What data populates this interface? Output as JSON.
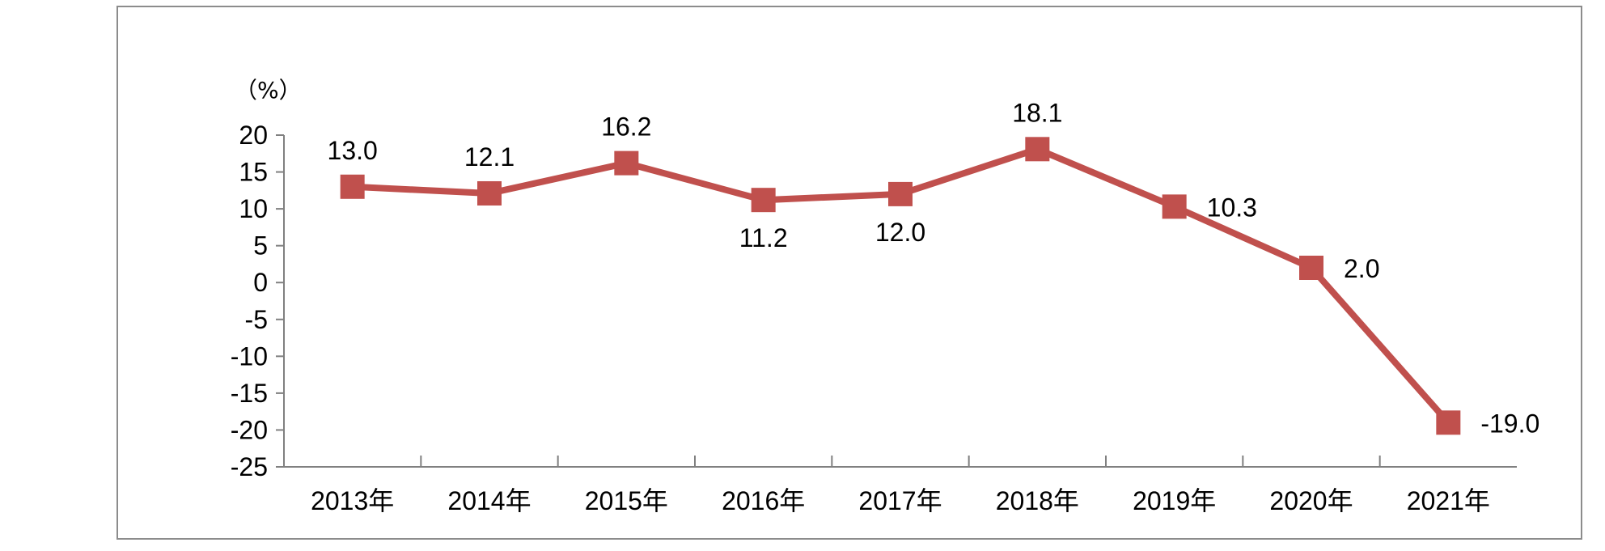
{
  "chart_data": {
    "type": "line",
    "unit_label": "（%）",
    "categories": [
      "2013年",
      "2014年",
      "2015年",
      "2016年",
      "2017年",
      "2018年",
      "2019年",
      "2020年",
      "2021年"
    ],
    "series": [
      {
        "values": [
          13.0,
          12.1,
          16.2,
          11.2,
          12.0,
          18.1,
          10.3,
          2.0,
          -19.0
        ]
      }
    ],
    "data_labels": [
      "13.0",
      "12.1",
      "16.2",
      "11.2",
      "12.0",
      "18.1",
      "10.3",
      "2.0",
      "-19.0"
    ],
    "ylim": [
      -25,
      20
    ],
    "y_ticks": [
      "20",
      "15",
      "10",
      "5",
      "0",
      "-5",
      "-10",
      "-15",
      "-20",
      "-25"
    ],
    "grid": false,
    "legend": "none",
    "line_color": "#c0504d",
    "marker": "square"
  }
}
